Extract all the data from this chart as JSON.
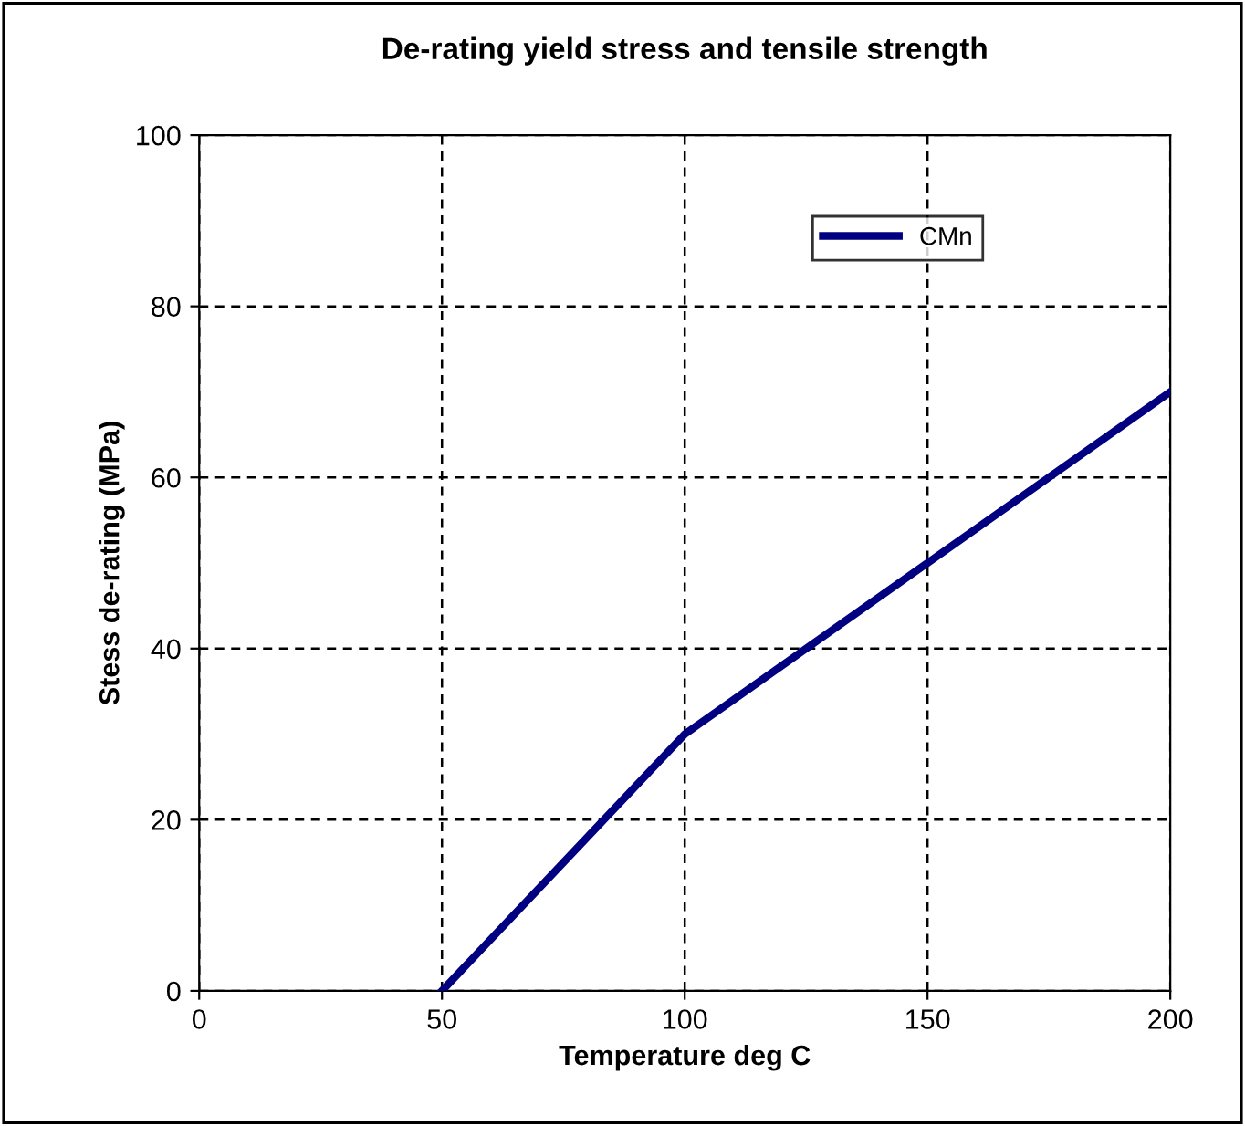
{
  "chart_data": {
    "type": "line",
    "title": "De-rating yield stress and tensile strength",
    "xlabel": "Temperature deg C",
    "ylabel": "Stess de-rating (MPa)",
    "x": [
      50,
      100,
      200
    ],
    "series": [
      {
        "name": "CMn",
        "color": "#000080",
        "values": [
          0,
          30,
          70
        ]
      }
    ],
    "xlim": [
      0,
      200
    ],
    "xticks": [
      0,
      50,
      100,
      150,
      200
    ],
    "ylim": [
      0,
      100
    ],
    "yticks": [
      0,
      20,
      40,
      60,
      80,
      100
    ],
    "grid": true,
    "legend": "top right",
    "marker": "none",
    "line_style": "solid"
  }
}
